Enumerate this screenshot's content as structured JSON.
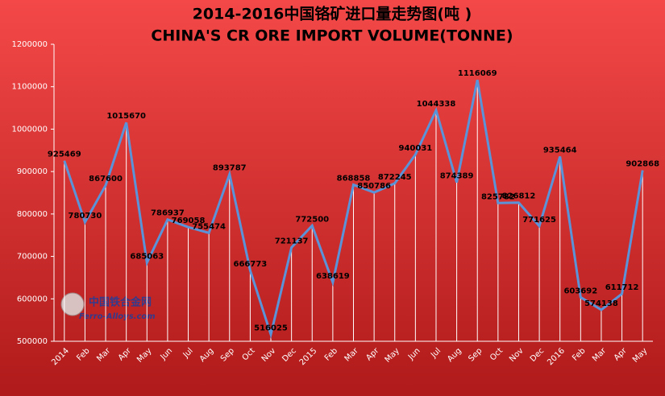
{
  "chart_data": {
    "type": "line",
    "title": "2014-2016中国铬矿进口量走势图(吨 )",
    "subtitle": "CHINA'S CR ORE IMPORT VOLUME(TONNE)",
    "watermark": "中国铁合金网",
    "watermark_url": "Ferro-Alloys.com",
    "categories": [
      "2014",
      "Feb",
      "Mar",
      "Apr",
      "May",
      "Jun",
      "Jul",
      "Aug",
      "Sep",
      "Oct",
      "Nov",
      "Dec",
      "2015",
      "Feb",
      "Mar",
      "Apr",
      "May",
      "Jun",
      "Jul",
      "Aug",
      "Sep",
      "Oct",
      "Nov",
      "Dec",
      "2016",
      "Feb",
      "Mar",
      "Apr",
      "May"
    ],
    "values": [
      925469,
      780730,
      867600,
      1015670,
      685063,
      786937,
      769058,
      755474,
      893787,
      666773,
      516025,
      721137,
      772500,
      638619,
      868858,
      850786,
      872245,
      940031,
      1044338,
      874389,
      1116069,
      825782,
      826812,
      771625,
      935464,
      603692,
      574138,
      611712,
      902868
    ],
    "color": "#5b93d8",
    "ylim": [
      500000,
      1200000
    ],
    "yticks": [
      500000,
      600000,
      700000,
      800000,
      900000,
      1000000,
      1100000,
      1200000
    ],
    "grid": true
  }
}
